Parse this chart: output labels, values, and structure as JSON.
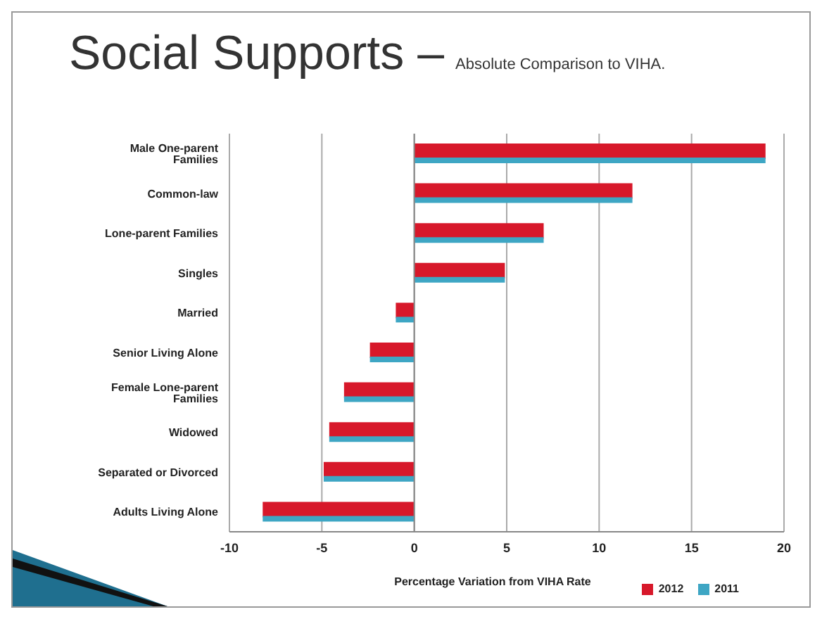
{
  "chart_data": {
    "type": "bar",
    "orientation": "horizontal",
    "title": "Social Supports –",
    "subtitle": "Absolute Comparison to VIHA.",
    "xlabel": "Percentage Variation from VIHA Rate",
    "categories": [
      "Male One-parent Families",
      "Common-law",
      "Lone-parent Families",
      "Singles",
      "Married",
      "Senior Living Alone",
      "Female Lone-parent Families",
      "Widowed",
      "Separated or Divorced",
      "Adults Living Alone"
    ],
    "series": [
      {
        "name": "2012",
        "color": "#d7182a",
        "values": [
          19,
          11.8,
          7,
          4.9,
          -1,
          -2.4,
          -3.8,
          -4.6,
          -4.9,
          -8.2
        ]
      },
      {
        "name": "2011",
        "color": "#3ea6c4",
        "values": [
          19,
          11.8,
          7,
          4.9,
          -1,
          -2.4,
          -3.8,
          -4.6,
          -4.9,
          -8.2
        ]
      }
    ],
    "xlim": [
      -10,
      20
    ],
    "xticks": [
      -10,
      -5,
      0,
      5,
      10,
      15,
      20
    ],
    "grid": "x",
    "legend": "bottom right"
  }
}
